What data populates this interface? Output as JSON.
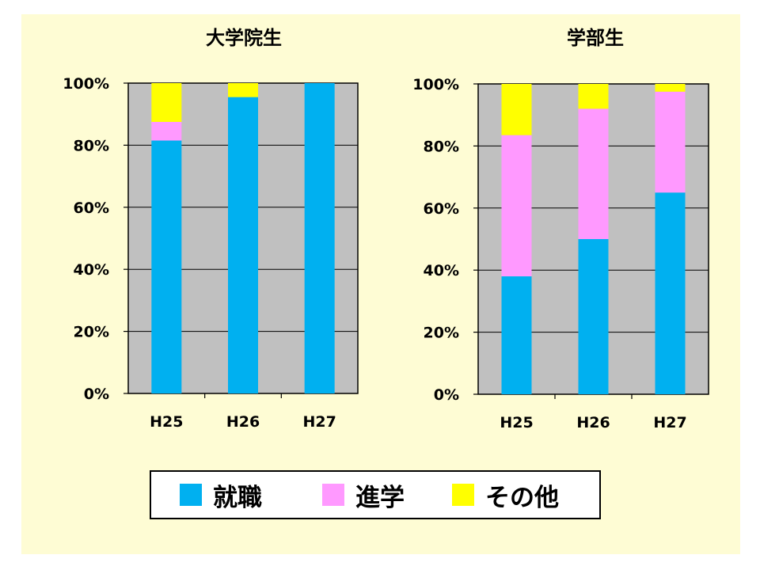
{
  "colors": {
    "employment": "#00b0f0",
    "further_study": "#ff99ff",
    "other": "#ffff00"
  },
  "chart_data": [
    {
      "type": "bar",
      "stacked": true,
      "title": "大学院生",
      "categories": [
        "H25",
        "H26",
        "H27"
      ],
      "series": [
        {
          "name": "就職",
          "values": [
            81.5,
            95.5,
            100
          ]
        },
        {
          "name": "進学",
          "values": [
            6.0,
            0.0,
            0.0
          ]
        },
        {
          "name": "その他",
          "values": [
            12.5,
            4.5,
            0.0
          ]
        }
      ],
      "ylim": [
        0,
        100
      ],
      "yticks": [
        "0%",
        "20%",
        "40%",
        "60%",
        "80%",
        "100%"
      ],
      "grid": true,
      "legend": "bottom"
    },
    {
      "type": "bar",
      "stacked": true,
      "title": "学部生",
      "categories": [
        "H25",
        "H26",
        "H27"
      ],
      "series": [
        {
          "name": "就職",
          "values": [
            38.0,
            50.0,
            65.0
          ]
        },
        {
          "name": "進学",
          "values": [
            45.5,
            42.0,
            32.5
          ]
        },
        {
          "name": "その他",
          "values": [
            16.5,
            8.0,
            2.5
          ]
        }
      ],
      "ylim": [
        0,
        100
      ],
      "yticks": [
        "0%",
        "20%",
        "40%",
        "60%",
        "80%",
        "100%"
      ],
      "grid": true,
      "legend": "bottom"
    }
  ],
  "legend": [
    {
      "label": "就職",
      "color": "#00b0f0"
    },
    {
      "label": "進学",
      "color": "#ff99ff"
    },
    {
      "label": "その他",
      "color": "#ffff00"
    }
  ]
}
